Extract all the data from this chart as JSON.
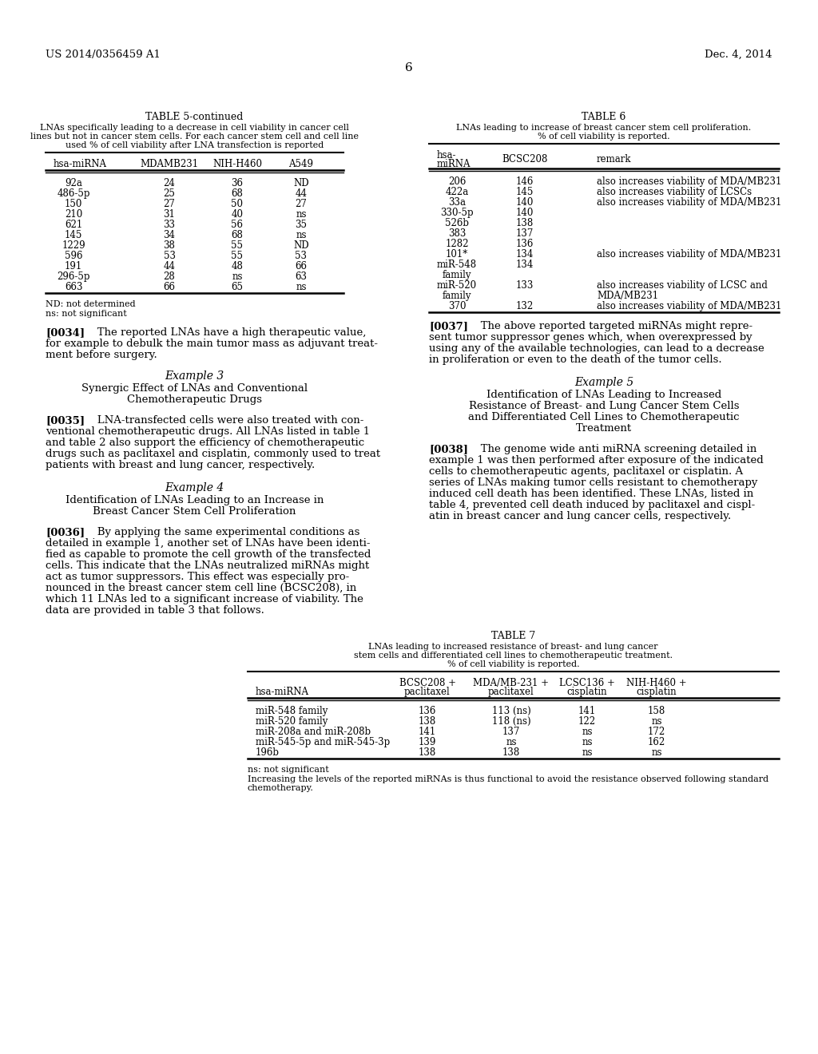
{
  "page_number": "6",
  "patent_left": "US 2014/0356459 A1",
  "patent_right": "Dec. 4, 2014",
  "background_color": "#ffffff",
  "table5_title": "TABLE 5-continued",
  "table5_caption_lines": [
    "LNAs specifically leading to a decrease in cell viability in cancer cell",
    "lines but not in cancer stem cells. For each cancer stem cell and cell line",
    "used % of cell viability after LNA transfection is reported"
  ],
  "table5_headers": [
    "hsa-miRNA",
    "MDAMB231",
    "NIH-H460",
    "A549"
  ],
  "table5_data": [
    [
      "92a",
      "24",
      "36",
      "ND"
    ],
    [
      "486-5p",
      "25",
      "68",
      "44"
    ],
    [
      "150",
      "27",
      "50",
      "27"
    ],
    [
      "210",
      "31",
      "40",
      "ns"
    ],
    [
      "621",
      "33",
      "56",
      "35"
    ],
    [
      "145",
      "34",
      "68",
      "ns"
    ],
    [
      "1229",
      "38",
      "55",
      "ND"
    ],
    [
      "596",
      "53",
      "55",
      "53"
    ],
    [
      "191",
      "44",
      "48",
      "66"
    ],
    [
      "296-5p",
      "28",
      "ns",
      "63"
    ],
    [
      "663",
      "66",
      "65",
      "ns"
    ]
  ],
  "table5_footnotes": [
    "ND: not determined",
    "ns: not significant"
  ],
  "table6_title": "TABLE 6",
  "table6_caption_lines": [
    "LNAs leading to increase of breast cancer stem cell proliferation.",
    "% of cell viability is reported."
  ],
  "table6_data": [
    [
      "206",
      "146",
      "also increases viability of MDA/MB231"
    ],
    [
      "422a",
      "145",
      "also increases viability of LCSCs"
    ],
    [
      "33a",
      "140",
      "also increases viability of MDA/MB231"
    ],
    [
      "330-5p",
      "140",
      ""
    ],
    [
      "526b",
      "138",
      ""
    ],
    [
      "383",
      "137",
      ""
    ],
    [
      "1282",
      "136",
      ""
    ],
    [
      "101*",
      "134",
      "also increases viability of MDA/MB231"
    ],
    [
      "miR-548",
      "134",
      ""
    ],
    [
      "family",
      "",
      ""
    ],
    [
      "miR-520",
      "133",
      "also increases viability of LCSC and"
    ],
    [
      "family",
      "",
      "MDA/MB231"
    ],
    [
      "370",
      "132",
      "also increases viability of MDA/MB231"
    ]
  ],
  "para0034_lines": [
    "[0034]    The reported LNAs have a high therapeutic value,",
    "for example to debulk the main tumor mass as adjuvant treat-",
    "ment before surgery."
  ],
  "example3_title": "Example 3",
  "example3_sub_lines": [
    "Synergic Effect of LNAs and Conventional",
    "Chemotherapeutic Drugs"
  ],
  "para0035_lines": [
    "[0035]    LNA-transfected cells were also treated with con-",
    "ventional chemotherapeutic drugs. All LNAs listed in table 1",
    "and table 2 also support the efficiency of chemotherapeutic",
    "drugs such as paclitaxel and cisplatin, commonly used to treat",
    "patients with breast and lung cancer, respectively."
  ],
  "example4_title": "Example 4",
  "example4_sub_lines": [
    "Identification of LNAs Leading to an Increase in",
    "Breast Cancer Stem Cell Proliferation"
  ],
  "para0036_lines": [
    "[0036]    By applying the same experimental conditions as",
    "detailed in example 1, another set of LNAs have been identi-",
    "fied as capable to promote the cell growth of the transfected",
    "cells. This indicate that the LNAs neutralized miRNAs might",
    "act as tumor suppressors. This effect was especially pro-",
    "nounced in the breast cancer stem cell line (BCSC208), in",
    "which 11 LNAs led to a significant increase of viability. The",
    "data are provided in table 3 that follows."
  ],
  "para0037_lines": [
    "[0037]    The above reported targeted miRNAs might repre-",
    "sent tumor suppressor genes which, when overexpressed by",
    "using any of the available technologies, can lead to a decrease",
    "in proliferation or even to the death of the tumor cells."
  ],
  "example5_title": "Example 5",
  "example5_sub_lines": [
    "Identification of LNAs Leading to Increased",
    "Resistance of Breast- and Lung Cancer Stem Cells",
    "and Differentiated Cell Lines to Chemotherapeutic",
    "Treatment"
  ],
  "para0038_lines": [
    "[0038]    The genome wide anti miRNA screening detailed in",
    "example 1 was then performed after exposure of the indicated",
    "cells to chemotherapeutic agents, paclitaxel or cisplatin. A",
    "series of LNAs making tumor cells resistant to chemotherapy",
    "induced cell death has been identified. These LNAs, listed in",
    "table 4, prevented cell death induced by paclitaxel and cispl-",
    "atin in breast cancer and lung cancer cells, respectively."
  ],
  "table7_title": "TABLE 7",
  "table7_caption_lines": [
    "LNAs leading to increased resistance of breast- and lung cancer",
    "stem cells and differentiated cell lines to chemotherapeutic treatment.",
    "% of cell viability is reported."
  ],
  "table7_col1_header": "hsa-miRNA",
  "table7_col2_header_lines": [
    "BCSC208 +",
    "paclitaxel"
  ],
  "table7_col3_header_lines": [
    "MDA/MB-231 +",
    "paclitaxel"
  ],
  "table7_col4_header_lines": [
    "LCSC136 +",
    "cisplatin"
  ],
  "table7_col5_header_lines": [
    "NIH-H460 +",
    "cisplatin"
  ],
  "table7_data": [
    [
      "miR-548 family",
      "136",
      "113 (ns)",
      "141",
      "158"
    ],
    [
      "miR-520 family",
      "138",
      "118 (ns)",
      "122",
      "ns"
    ],
    [
      "miR-208a and miR-208b",
      "141",
      "137",
      "ns",
      "172"
    ],
    [
      "miR-545-5p and miR-545-3p",
      "139",
      "ns",
      "ns",
      "162"
    ],
    [
      "196b",
      "138",
      "138",
      "ns",
      "ns"
    ]
  ],
  "table7_fn1": "ns: not significant",
  "table7_fn2_lines": [
    "Increasing the levels of the reported miRNAs is thus functional to avoid the resistance observed following standard",
    "chemotherapy."
  ]
}
